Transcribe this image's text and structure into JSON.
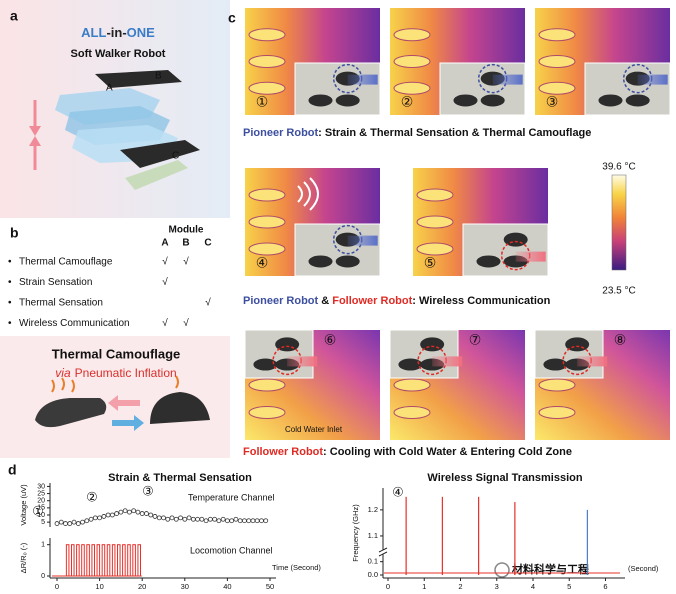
{
  "panel_a": {
    "label": "a",
    "title": [
      {
        "text": "ALL",
        "color": "#3a7cc8"
      },
      {
        "text": "-in-",
        "color": "#222222"
      },
      {
        "text": "ONE",
        "color": "#3a7cc8"
      }
    ],
    "subtitle": "Soft Walker Robot",
    "parts": [
      "A",
      "B",
      "C"
    ]
  },
  "panel_b": {
    "label": "b",
    "header": "Module",
    "columns": [
      "A",
      "B",
      "C"
    ],
    "bullet": "•",
    "rows": [
      {
        "name": "Thermal Camouflage",
        "A": "√",
        "B": "√"
      },
      {
        "name": "Strain Sensation",
        "A": "√"
      },
      {
        "name": "Thermal Sensation",
        "C": "√"
      },
      {
        "name": "Wireless Communication",
        "A": "√",
        "B": "√"
      }
    ]
  },
  "panel_b_box": {
    "title": "Thermal Camouflage",
    "via": "via",
    "subtitle": "Pneumatic Inflation",
    "color": "#d8302c"
  },
  "panel_c": {
    "label": "c",
    "numbers": [
      "①",
      "②",
      "③",
      "④",
      "⑤",
      "⑥",
      "⑦",
      "⑧"
    ],
    "captions": [
      [
        {
          "text": "Pioneer Robot",
          "color": "#3c4fa0"
        },
        {
          "text": ": Strain & Thermal Sensation & Thermal Camouflage",
          "color": "#111111"
        }
      ],
      [
        {
          "text": "Pioneer Robot",
          "color": "#3c4fa0"
        },
        {
          "text": " & ",
          "color": "#111111"
        },
        {
          "text": "Follower Robot",
          "color": "#e02a24"
        },
        {
          "text": ": Wireless Communication",
          "color": "#111111"
        }
      ],
      [
        {
          "text": "Follower Robot",
          "color": "#e02a24"
        },
        {
          "text": ": Cooling with Cold Water & Entering Cold Zone",
          "color": "#111111"
        }
      ]
    ],
    "colorbar": {
      "max": "39.6 °C",
      "min": "23.5 °C"
    },
    "inlet_label": "Cold Water Inlet"
  },
  "panel_d": {
    "label": "d",
    "watermark": "材料科学与工程"
  },
  "chart_data": [
    {
      "type": "scatter",
      "title": "Strain & Thermal Sensation",
      "y_label": "Voltage (uV)",
      "channel_label": "Temperature Channel",
      "annotations": [
        "①",
        "②",
        "③"
      ],
      "x": [
        0,
        1,
        2,
        3,
        4,
        5,
        6,
        7,
        8,
        9,
        10,
        11,
        12,
        13,
        14,
        15,
        16,
        17,
        18,
        19,
        20,
        21,
        22,
        23,
        24,
        25,
        26,
        27,
        28,
        29,
        30,
        31,
        32,
        33,
        34,
        35,
        36,
        37,
        38,
        39,
        40,
        41,
        42,
        43,
        44,
        45,
        46,
        47,
        48,
        49
      ],
      "values": [
        4,
        5,
        4,
        4,
        5,
        4,
        5,
        6,
        7,
        8,
        8,
        9,
        10,
        10,
        11,
        12,
        13,
        12,
        13,
        12,
        11,
        11,
        10,
        9,
        8,
        8,
        7,
        8,
        7,
        8,
        7,
        8,
        7,
        7,
        7,
        6,
        7,
        7,
        6,
        7,
        6,
        6,
        7,
        6,
        6,
        6,
        6,
        6,
        6,
        6
      ],
      "color": "#333333",
      "xlim": [
        0,
        50
      ],
      "ylim": [
        3,
        31
      ],
      "yticks": [
        5,
        10,
        15,
        20,
        25,
        30
      ]
    },
    {
      "type": "pulse",
      "y_label": "ΔR/R₀ (-)",
      "x_label": "Time (Second)",
      "channel_label": "Locomotion Channel",
      "x": [
        2.5,
        3.7,
        4.9,
        6.1,
        7.3,
        8.5,
        9.7,
        10.9,
        12.1,
        13.3,
        14.5,
        15.7,
        16.9,
        18.1,
        19.3
      ],
      "values": [
        1,
        1,
        1,
        1,
        1,
        1,
        1,
        1,
        1,
        1,
        1,
        1,
        1,
        1,
        1
      ],
      "pulse_width": 0.6,
      "color": "#e8302a",
      "xlim": [
        0,
        50
      ],
      "ylim": [
        0,
        1.15
      ],
      "xticks": [
        0,
        10,
        20,
        30,
        40,
        50
      ],
      "yticks": [
        0,
        1
      ]
    },
    {
      "type": "spike",
      "title": "Wireless Signal Transmission",
      "y_label": "Frequency (GHz)",
      "x_label": "(Second)",
      "annotation": "④",
      "series": [
        {
          "color": "#e8302a",
          "x": [
            0.5,
            1.5,
            2.5,
            3.5
          ],
          "values": [
            1.25,
            1.25,
            1.25,
            1.23
          ]
        },
        {
          "color": "#4a7fc0",
          "x": [
            5.5
          ],
          "values": [
            1.2
          ]
        }
      ],
      "xlim": [
        0,
        6.4
      ],
      "ylim": [
        0,
        1.28
      ],
      "ybreak": [
        0.15,
        1.05
      ],
      "xticks": [
        0,
        1,
        2,
        3,
        4,
        5,
        6
      ],
      "yticks": [
        {
          "value": 0,
          "label": "0.0"
        },
        0.1,
        1.1,
        1.2
      ]
    }
  ]
}
